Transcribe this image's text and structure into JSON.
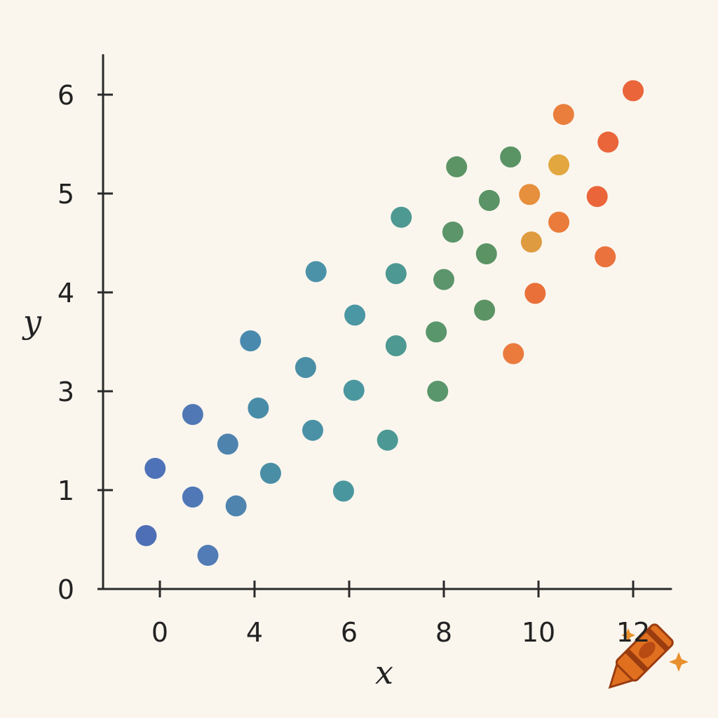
{
  "chart_data": {
    "type": "scatter",
    "x_label": "x",
    "y_label": "y",
    "xlim": [
      -2.4,
      12.8
    ],
    "ylim": [
      0,
      6.4
    ],
    "xticks": [
      0,
      4,
      6,
      8,
      10,
      12
    ],
    "yticks": [
      0,
      1,
      3,
      4,
      5,
      6
    ],
    "x": [
      -0.58,
      -0.2,
      1.39,
      1.39,
      2.03,
      2.87,
      3.22,
      3.83,
      4.08,
      4.34,
      5.08,
      5.23,
      5.3,
      5.88,
      6.12,
      6.1,
      6.81,
      6.99,
      6.99,
      7.1,
      7.87,
      7.84,
      8.0,
      8.19,
      8.27,
      8.86,
      8.9,
      8.96,
      9.41,
      9.47,
      9.81,
      9.85,
      9.93,
      10.43,
      10.43,
      10.53,
      11.24,
      11.41,
      11.47,
      12.0
    ],
    "y": [
      0.54,
      1.44,
      2.53,
      0.93,
      0.34,
      1.93,
      0.84,
      3.51,
      2.66,
      1.34,
      3.24,
      2.21,
      4.21,
      0.99,
      3.77,
      3.01,
      2.01,
      4.19,
      3.46,
      4.76,
      3.0,
      3.6,
      4.13,
      4.61,
      5.27,
      3.82,
      4.39,
      4.93,
      5.37,
      3.38,
      4.99,
      4.51,
      3.99,
      5.29,
      4.71,
      5.8,
      4.97,
      4.36,
      5.52,
      6.04
    ],
    "colors": [
      "#3f63b0",
      "#3f66b2",
      "#416cb0",
      "#416db2",
      "#4271b0",
      "#3f78a8",
      "#3f7aa8",
      "#3b7fa8",
      "#3a82a2",
      "#3a849e",
      "#3c86a0",
      "#3b88a0",
      "#3c89a3",
      "#3b8d98",
      "#3c8e9c",
      "#3c8e98",
      "#3d8f8c",
      "#3e8f8a",
      "#3f908a",
      "#3f9089",
      "#4c8d60",
      "#4c8d60",
      "#4e8c60",
      "#4e8c5e",
      "#4e8b5a",
      "#4e8a58",
      "#4d8a58",
      "#4c8a5a",
      "#4c8a58",
      "#e8702e",
      "#e4862e",
      "#dc9230",
      "#e8642a",
      "#e0a030",
      "#e8702a",
      "#e8742e",
      "#e8582a",
      "#e8662c",
      "#e8582a",
      "#e8582a"
    ]
  }
}
